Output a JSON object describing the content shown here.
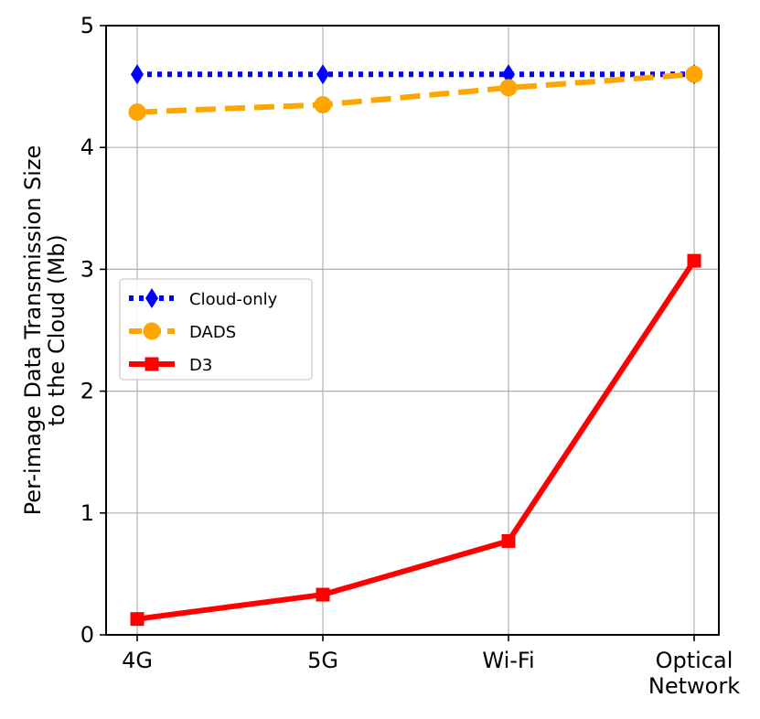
{
  "chart_data": {
    "type": "line",
    "title": "",
    "categories": [
      "4G",
      "5G",
      "Wi-Fi",
      "Optical Network"
    ],
    "category_lines": [
      [
        "4G"
      ],
      [
        "5G"
      ],
      [
        "Wi-Fi"
      ],
      [
        "Optical",
        "Network"
      ]
    ],
    "xlabel": "",
    "ylabel_lines": [
      "Per-image Data Transmission Size",
      "to the Cloud (Mb)"
    ],
    "ylim": [
      0,
      5
    ],
    "yticks": [
      0,
      1,
      2,
      3,
      4,
      5
    ],
    "grid": true,
    "legend_position": "center-left",
    "series": [
      {
        "name": "Cloud-only",
        "values": [
          4.6,
          4.6,
          4.6,
          4.6
        ],
        "color": "#0000ff",
        "linestyle": "dotted",
        "marker": "diamond"
      },
      {
        "name": "DADS",
        "values": [
          4.29,
          4.35,
          4.49,
          4.6
        ],
        "color": "#ffa500",
        "linestyle": "dashed",
        "marker": "circle"
      },
      {
        "name": "D3",
        "values": [
          0.13,
          0.33,
          0.77,
          3.07
        ],
        "color": "#ff0000",
        "linestyle": "solid",
        "marker": "square"
      }
    ]
  }
}
